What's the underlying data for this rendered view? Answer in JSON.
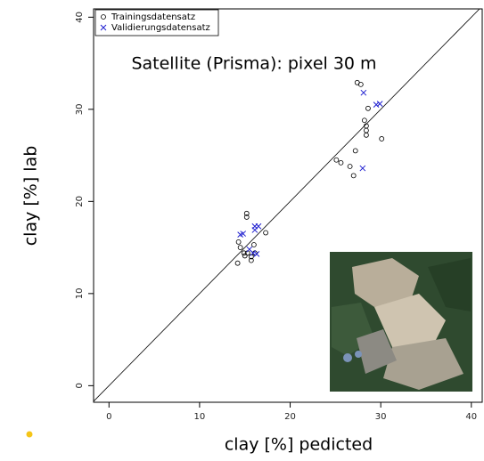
{
  "chart_data": {
    "type": "scatter",
    "annotation": "Satellite (Prisma): pixel 30 m",
    "x_label": "clay [%] pedicted",
    "y_label": "clay [%] lab",
    "xlim": [
      -1.7,
      41.2
    ],
    "ylim": [
      -1.8,
      40.9
    ],
    "xticks": [
      0,
      10,
      20,
      30,
      40
    ],
    "yticks": [
      0,
      10,
      20,
      30,
      40
    ],
    "identity_line": true,
    "legend": "top-left",
    "series": [
      {
        "name": "Trainingsdatensatz",
        "color": "#000000",
        "marker": "circle",
        "x": [
          27.4,
          27.8,
          28.6,
          28.2,
          28.4,
          28.4,
          28.4,
          30.1,
          25.1,
          25.6,
          26.6,
          27.2,
          27.0,
          15.2,
          15.2,
          17.3,
          14.3,
          14.5,
          14.9,
          15.0,
          15.3,
          15.7,
          16.1,
          15.7,
          14.2,
          16.0
        ],
        "values": [
          32.9,
          32.7,
          30.1,
          28.8,
          28.2,
          27.7,
          27.2,
          26.8,
          24.5,
          24.2,
          23.8,
          25.5,
          22.8,
          18.7,
          18.3,
          16.6,
          15.6,
          15.0,
          14.4,
          14.1,
          14.4,
          14.0,
          14.4,
          13.6,
          13.3,
          15.3
        ]
      },
      {
        "name": "Validierungsdatensatz",
        "color": "#2020d0",
        "marker": "cross",
        "x": [
          29.5,
          29.9,
          28.1,
          28.0,
          14.5,
          14.8,
          16.1,
          16.5,
          16.1,
          15.9,
          16.3,
          15.5
        ],
        "values": [
          30.5,
          30.6,
          31.8,
          23.6,
          16.4,
          16.5,
          17.3,
          17.3,
          16.9,
          14.4,
          14.3,
          14.8
        ]
      }
    ]
  }
}
